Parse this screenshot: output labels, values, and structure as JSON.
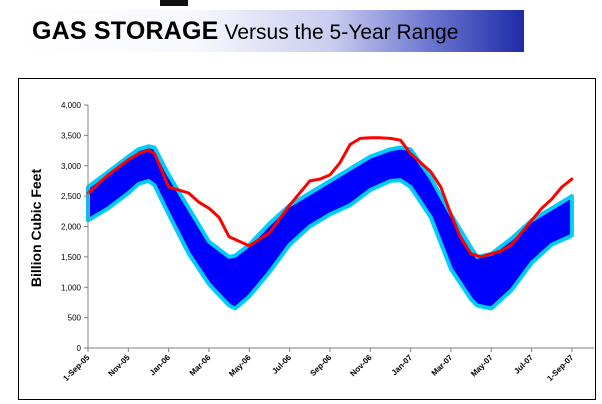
{
  "header": {
    "title": "GAS STORAGE",
    "subtitle": "Versus the 5-Year Range",
    "bar_colors": [
      "#ffffff",
      "#1e2ba8"
    ]
  },
  "chart_data": {
    "type": "area",
    "ylabel": "Billion Cubic Feet",
    "ylim": [
      0,
      4000
    ],
    "yticks": [
      0,
      500,
      1000,
      1500,
      2000,
      2500,
      3000,
      3500,
      4000
    ],
    "ytick_labels": [
      "0",
      "500",
      "1,000",
      "1,500",
      "2,000",
      "2,500",
      "3,000",
      "3,500",
      "4,000"
    ],
    "xlim": [
      0,
      24.6
    ],
    "xticks": [
      0,
      2,
      4,
      6,
      8,
      10,
      12,
      14,
      16,
      18,
      20,
      22,
      24
    ],
    "xtick_labels": [
      "1-Sep-05",
      "Nov-05",
      "Jan-06",
      "Mar-06",
      "May-06",
      "Jul-06",
      "Sep-06",
      "Nov-06",
      "Jan-07",
      "Mar-07",
      "May-07",
      "Jul-07",
      "1-Sep-07"
    ],
    "grid": false,
    "legend": "none",
    "colors": {
      "range_fill": "#0000ff",
      "range_outline": "#00ccff",
      "current": "#ff0000"
    },
    "series": [
      {
        "role": "range",
        "x": [
          0,
          1,
          2,
          2.5,
          3,
          3.3,
          4,
          5,
          6,
          7,
          7.3,
          8,
          9,
          10,
          11,
          12,
          13,
          14,
          15,
          15.5,
          16,
          17,
          18,
          19,
          19.3,
          20,
          21,
          22,
          23,
          24
        ],
        "high": [
          2650,
          2900,
          3150,
          3270,
          3320,
          3300,
          2850,
          2300,
          1750,
          1500,
          1520,
          1700,
          2050,
          2350,
          2550,
          2750,
          2950,
          3150,
          3270,
          3300,
          3270,
          2800,
          2200,
          1650,
          1500,
          1550,
          1800,
          2100,
          2300,
          2500
        ],
        "low": [
          2100,
          2300,
          2550,
          2700,
          2750,
          2680,
          2200,
          1550,
          1050,
          700,
          650,
          850,
          1250,
          1700,
          2000,
          2200,
          2350,
          2600,
          2750,
          2760,
          2650,
          2150,
          1300,
          800,
          700,
          650,
          950,
          1400,
          1700,
          1850
        ]
      },
      {
        "role": "current",
        "x": [
          0,
          1,
          2,
          2.5,
          3,
          3.3,
          4,
          5,
          5.5,
          6,
          6.5,
          7,
          8,
          9,
          10,
          10.5,
          11,
          11.5,
          12,
          12.5,
          13,
          13.5,
          14,
          14.5,
          15,
          15.5,
          16,
          16.5,
          17,
          17.5,
          18,
          18.5,
          19,
          19.5,
          20,
          20.5,
          21,
          21.5,
          22,
          22.5,
          23,
          23.5,
          24
        ],
        "values": [
          2550,
          2850,
          3100,
          3200,
          3260,
          3200,
          2650,
          2550,
          2400,
          2300,
          2150,
          1830,
          1680,
          1900,
          2350,
          2550,
          2750,
          2780,
          2850,
          3050,
          3350,
          3450,
          3460,
          3460,
          3450,
          3420,
          3200,
          3050,
          2900,
          2650,
          2200,
          1800,
          1550,
          1500,
          1550,
          1600,
          1700,
          1900,
          2100,
          2300,
          2450,
          2650,
          2780
        ]
      }
    ]
  }
}
